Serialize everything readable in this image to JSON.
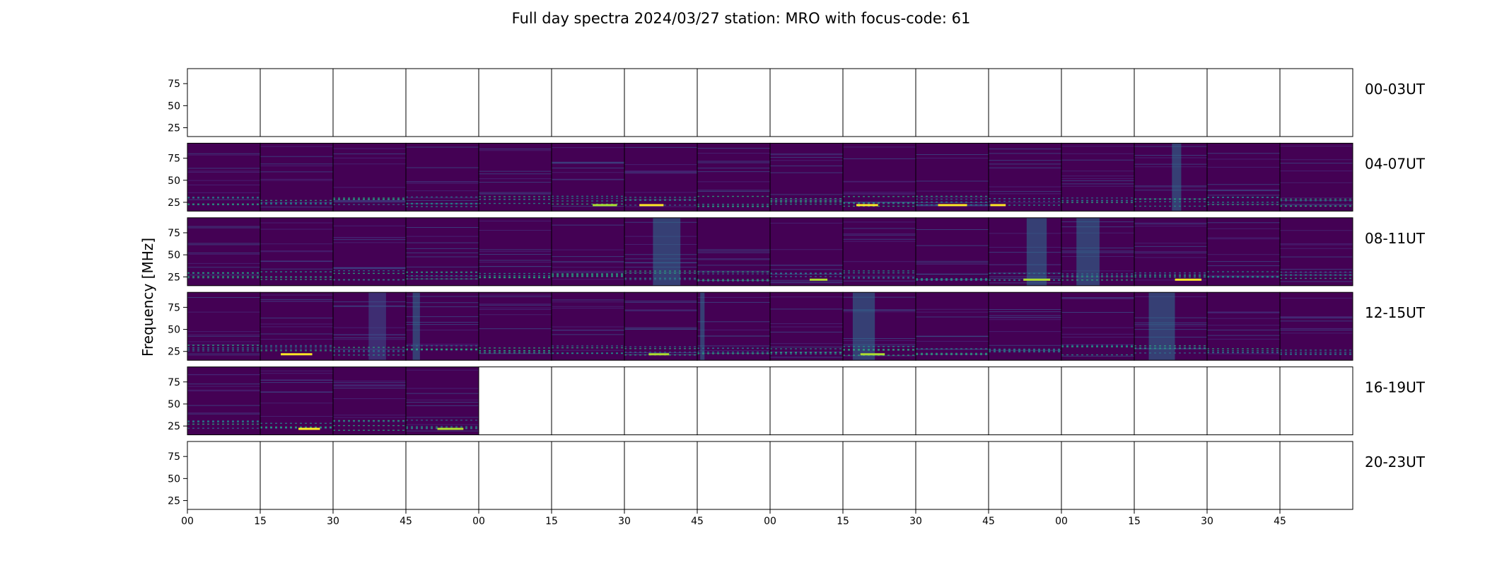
{
  "chart_data": {
    "type": "heatmap",
    "title": "Full day spectra 2024/03/27 station: MRO with focus-code: 61",
    "ylabel": "Frequency [MHz]",
    "xlabel": "",
    "ylim": [
      15,
      92
    ],
    "y_ticks": [
      25,
      50,
      75
    ],
    "x_tick_labels": [
      "00",
      "15",
      "30",
      "45",
      "00",
      "15",
      "30",
      "45",
      "00",
      "15",
      "30",
      "45",
      "00",
      "15",
      "30",
      "45"
    ],
    "columns_per_row": 16,
    "grid": false,
    "colormap": [
      "#440154",
      "#472d7b",
      "#3b528b",
      "#2c728e",
      "#21918c",
      "#28ae80",
      "#5ec962",
      "#addc30",
      "#fde725"
    ],
    "rows": [
      {
        "label": "00-03UT",
        "filled": [
          0,
          0,
          0,
          0,
          0,
          0,
          0,
          0,
          0,
          0,
          0,
          0,
          0,
          0,
          0,
          0
        ]
      },
      {
        "label": "04-07UT",
        "filled": [
          1,
          1,
          1,
          1,
          1,
          1,
          1,
          1,
          1,
          1,
          1,
          1,
          1,
          1,
          1,
          1
        ]
      },
      {
        "label": "08-11UT",
        "filled": [
          1,
          1,
          1,
          1,
          1,
          1,
          1,
          1,
          1,
          1,
          1,
          1,
          1,
          1,
          1,
          1
        ]
      },
      {
        "label": "12-15UT",
        "filled": [
          1,
          1,
          1,
          1,
          1,
          1,
          1,
          1,
          1,
          1,
          1,
          1,
          1,
          1,
          1,
          1
        ]
      },
      {
        "label": "16-19UT",
        "filled": [
          1,
          1,
          1,
          1,
          0,
          0,
          0,
          0,
          0,
          0,
          0,
          0,
          0,
          0,
          0,
          0
        ]
      },
      {
        "label": "20-23UT",
        "filled": [
          0,
          0,
          0,
          0,
          0,
          0,
          0,
          0,
          0,
          0,
          0,
          0,
          0,
          0,
          0,
          0
        ]
      }
    ]
  }
}
